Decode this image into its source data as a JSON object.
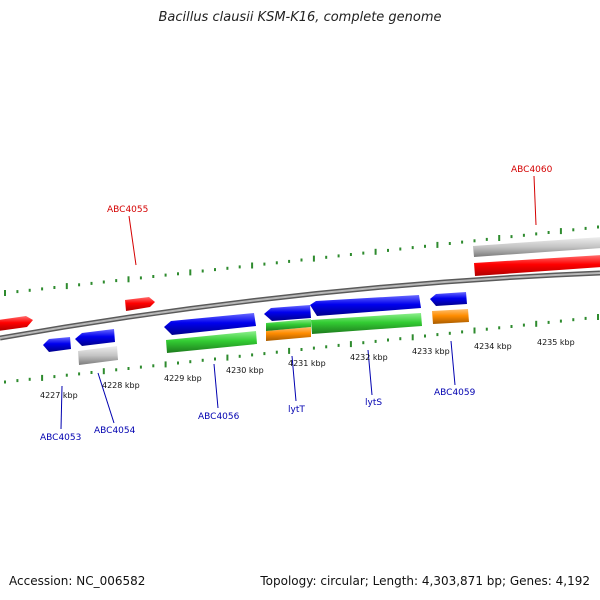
{
  "title": "Bacillus clausii KSM-K16, complete genome",
  "footer": {
    "accession": "Accession: NC_006582",
    "stats": "Topology: circular; Length: 4,303,871 bp; Genes: 4,192"
  },
  "colors": {
    "backbone": "#888888",
    "tick": "#2e8b2e",
    "forward_strand_label": "#d40000",
    "reverse_strand_label": "#0000b0",
    "gene_red": "#ff0000",
    "gene_blue": "#0000ee",
    "gene_green": "#33cc33",
    "gene_orange": "#ff8c00",
    "gene_gray": "#c0c0c0"
  },
  "scale_ticks": [
    "4227 kbp",
    "4228 kbp",
    "4229 kbp",
    "4230 kbp",
    "4231 kbp",
    "4232 kbp",
    "4233 kbp",
    "4234 kbp",
    "4235 kbp"
  ],
  "gene_labels": [
    {
      "name": "ABC4055",
      "strand": "forward"
    },
    {
      "name": "ABC4060",
      "strand": "forward"
    },
    {
      "name": "ABC4053",
      "strand": "reverse"
    },
    {
      "name": "ABC4054",
      "strand": "reverse"
    },
    {
      "name": "ABC4056",
      "strand": "reverse"
    },
    {
      "name": "lytT",
      "strand": "reverse"
    },
    {
      "name": "lytS",
      "strand": "reverse"
    },
    {
      "name": "ABC4059",
      "strand": "reverse"
    }
  ]
}
